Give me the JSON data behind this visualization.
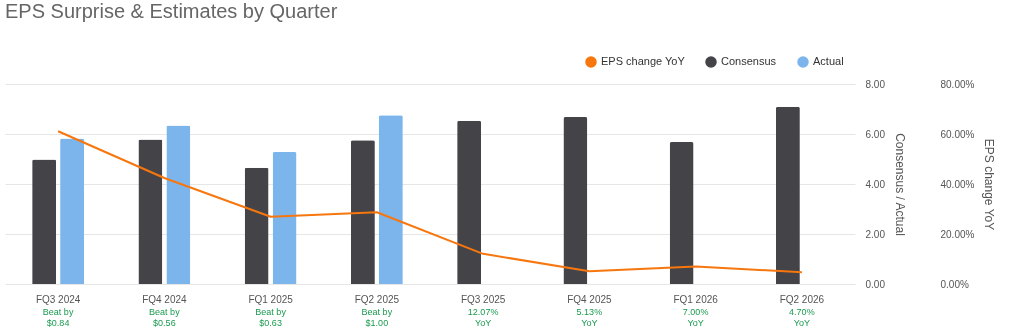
{
  "chart_data": {
    "type": "bar",
    "title": "EPS Surprise & Estimates by Quarter",
    "categories": [
      "FQ3 2024",
      "FQ4 2024",
      "FQ1 2025",
      "FQ2 2025",
      "FQ3 2025",
      "FQ4 2025",
      "FQ1 2026",
      "FQ2 2026"
    ],
    "series": [
      {
        "name": "EPS change YoY",
        "type": "line",
        "axis": "y2",
        "color": "#f7760d",
        "values": [
          61.1,
          42.4,
          26.9,
          28.7,
          12.07,
          5.13,
          7.0,
          4.7
        ]
      },
      {
        "name": "Consensus",
        "color": "#434348",
        "values": [
          4.98,
          5.78,
          4.65,
          5.75,
          6.53,
          6.68,
          5.68,
          7.09
        ]
      },
      {
        "name": "Actual",
        "color": "#7cb5ec",
        "values": [
          5.82,
          6.34,
          5.28,
          6.75,
          null,
          null,
          null,
          null
        ]
      }
    ],
    "ylabel": "Consensus / Actual",
    "y2label": "EPS change YoY",
    "ylim": [
      0,
      8
    ],
    "yticks": [
      {
        "value": 0,
        "label": "0.00"
      },
      {
        "value": 2,
        "label": "2.00"
      },
      {
        "value": 4,
        "label": "4.00"
      },
      {
        "value": 6,
        "label": "6.00"
      },
      {
        "value": 8,
        "label": "8.00"
      }
    ],
    "y2lim": [
      0,
      80
    ],
    "y2ticks": [
      {
        "value": 0,
        "label": "0.00%"
      },
      {
        "value": 20,
        "label": "20.00%"
      },
      {
        "value": 40,
        "label": "40.00%"
      },
      {
        "value": 60,
        "label": "60.00%"
      },
      {
        "value": 80,
        "label": "80.00%"
      }
    ],
    "grid": "y",
    "legend": "top right",
    "annotations": [
      "Beat by\n$0.84",
      "Beat by\n$0.56",
      "Beat by\n$0.63",
      "Beat by\n$1.00",
      "12.07%\nYoY",
      "5.13%\nYoY",
      "7.00%\nYoY",
      "4.70%\nYoY"
    ]
  }
}
